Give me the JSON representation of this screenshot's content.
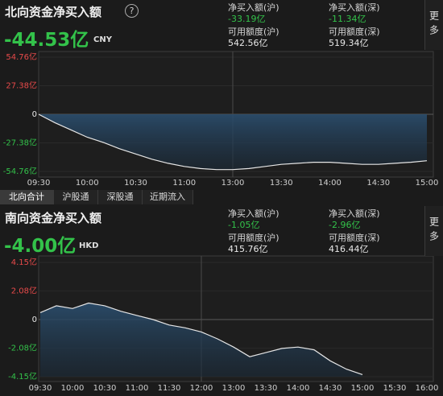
{
  "panels": [
    {
      "title": "北向资金净买入额",
      "help": "?",
      "value": "-44.53亿",
      "unit": "CNY",
      "more": "更多",
      "stats": [
        {
          "label": "净买入额(沪)",
          "value": "-33.19亿"
        },
        {
          "label": "净买入额(深)",
          "value": "-11.34亿"
        },
        {
          "label": "可用额度(沪)",
          "value": "542.56亿"
        },
        {
          "label": "可用额度(深)",
          "value": "519.34亿"
        }
      ]
    },
    {
      "title": "南向资金净买入额",
      "value": "-4.00亿",
      "unit": "HKD",
      "more": "更多",
      "stats": [
        {
          "label": "净买入额(沪)",
          "value": "-1.05亿"
        },
        {
          "label": "净买入额(深)",
          "value": "-2.96亿"
        },
        {
          "label": "可用额度(沪)",
          "value": "415.76亿"
        },
        {
          "label": "可用额度(深)",
          "value": "416.44亿"
        }
      ]
    }
  ],
  "tabs": [
    "北向合计",
    "沪股通",
    "深股通",
    "近期流入"
  ],
  "chart_data": [
    {
      "type": "line",
      "color": "#e6e6e6",
      "xlim": [
        0,
        240
      ],
      "xticks": [
        {
          "value": 0,
          "label": "09:30"
        },
        {
          "value": 30,
          "label": "10:00"
        },
        {
          "value": 60,
          "label": "10:30"
        },
        {
          "value": 90,
          "label": "11:00"
        },
        {
          "value": 120,
          "label": "13:00"
        },
        {
          "value": 150,
          "label": "13:30"
        },
        {
          "value": 180,
          "label": "14:00"
        },
        {
          "value": 210,
          "label": "14:30"
        },
        {
          "value": 240,
          "label": "15:00"
        }
      ],
      "ylim": [
        -54.76,
        54.76
      ],
      "yticks": [
        {
          "value": 54.76,
          "label": "54.76亿"
        },
        {
          "value": 27.38,
          "label": "27.38亿"
        },
        0,
        {
          "value": -27.38,
          "label": "-27.38亿"
        },
        {
          "value": -54.76,
          "label": "-54.76亿"
        }
      ],
      "x": [
        0,
        10,
        20,
        30,
        40,
        50,
        60,
        70,
        80,
        90,
        100,
        110,
        120,
        130,
        140,
        150,
        160,
        170,
        180,
        190,
        200,
        210,
        220,
        230,
        240
      ],
      "values": [
        0,
        -8,
        -15,
        -22,
        -27,
        -33,
        -38,
        -43,
        -47,
        -50,
        -52,
        -53,
        -53,
        -52,
        -50,
        -48,
        -47,
        -46,
        -46,
        -47,
        -48,
        -48,
        -47,
        -46,
        -44.53
      ]
    },
    {
      "type": "line",
      "color": "#e6e6e6",
      "xlim": [
        0,
        360
      ],
      "xticks": [
        {
          "value": 0,
          "label": "09:30"
        },
        {
          "value": 30,
          "label": "10:00"
        },
        {
          "value": 60,
          "label": "10:30"
        },
        {
          "value": 90,
          "label": "11:00"
        },
        {
          "value": 120,
          "label": "11:30"
        },
        {
          "value": 150,
          "label": "12:00"
        },
        {
          "value": 180,
          "label": "13:00"
        },
        {
          "value": 210,
          "label": "13:30"
        },
        {
          "value": 240,
          "label": "14:00"
        },
        {
          "value": 270,
          "label": "14:30"
        },
        {
          "value": 300,
          "label": "15:00"
        },
        {
          "value": 330,
          "label": "15:30"
        },
        {
          "value": 360,
          "label": "16:00"
        }
      ],
      "ylim": [
        -4.15,
        4.15
      ],
      "yticks": [
        {
          "value": 4.15,
          "label": "4.15亿"
        },
        {
          "value": 2.08,
          "label": "2.08亿"
        },
        0,
        {
          "value": -2.08,
          "label": "-2.08亿"
        },
        {
          "value": -4.15,
          "label": "-4.15亿"
        }
      ],
      "x": [
        0,
        15,
        30,
        45,
        60,
        75,
        90,
        105,
        120,
        135,
        150,
        165,
        180,
        195,
        210,
        225,
        240,
        255,
        270,
        285,
        300
      ],
      "values": [
        0.5,
        1.0,
        0.8,
        1.2,
        1.0,
        0.6,
        0.3,
        0,
        -0.4,
        -0.6,
        -0.9,
        -1.4,
        -2.0,
        -2.7,
        -2.4,
        -2.1,
        -2.0,
        -2.2,
        -3.0,
        -3.6,
        -4.0
      ]
    }
  ]
}
